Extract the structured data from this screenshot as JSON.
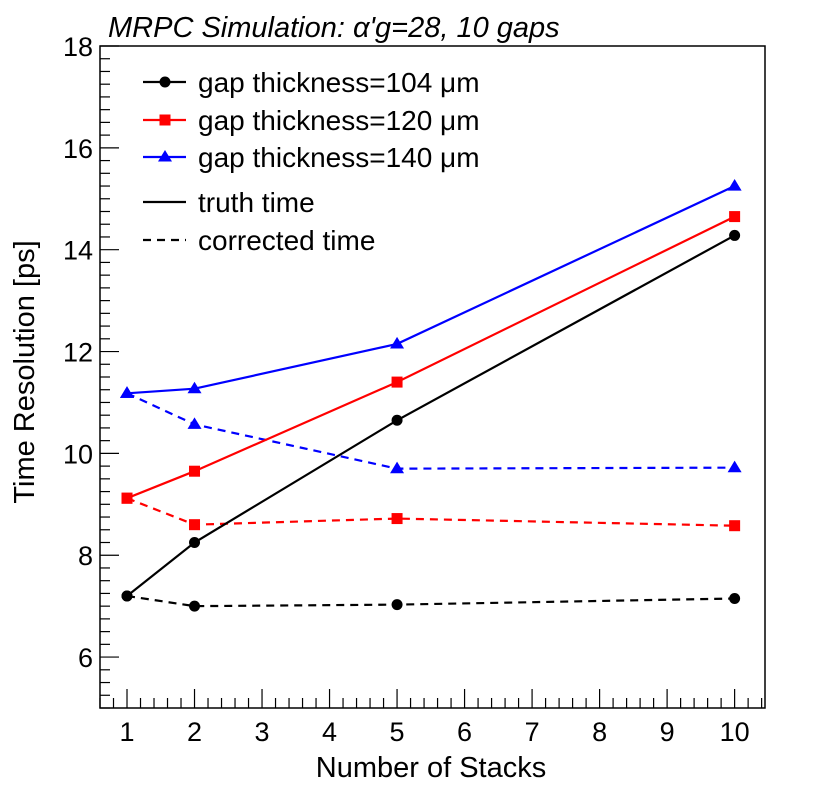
{
  "chart_data": {
    "type": "line",
    "title": "MRPC Simulation: α'g=28, 10 gaps",
    "xlabel": "Number of Stacks",
    "ylabel": "Time Resolution [ps]",
    "xlim": [
      0.6,
      10.45
    ],
    "ylim": [
      5,
      18
    ],
    "x_ticks": [
      1,
      2,
      3,
      4,
      5,
      6,
      7,
      8,
      9,
      10
    ],
    "x_tick_labels": [
      "1",
      "2",
      "3",
      "4",
      "5",
      "6",
      "7",
      "8",
      "9",
      "10"
    ],
    "y_ticks": [
      6,
      8,
      10,
      12,
      14,
      16,
      18
    ],
    "y_tick_labels": [
      "6",
      "8",
      "10",
      "12",
      "14",
      "16",
      "18"
    ],
    "legend_position": "top-left",
    "series": [
      {
        "name": "gap thickness=104 μm truth time",
        "legend": "gap thickness=104 μm",
        "color": "#000000",
        "marker": "circle",
        "style": "solid",
        "x": [
          1,
          2,
          5,
          10
        ],
        "values": [
          7.2,
          8.25,
          10.65,
          14.28
        ]
      },
      {
        "name": "gap thickness=120 μm truth time",
        "legend": "gap thickness=120 μm",
        "color": "#ff0000",
        "marker": "square",
        "style": "solid",
        "x": [
          1,
          2,
          5,
          10
        ],
        "values": [
          9.12,
          9.65,
          11.4,
          14.65
        ]
      },
      {
        "name": "gap thickness=140 μm truth time",
        "legend": "gap thickness=140 μm",
        "color": "#0000ff",
        "marker": "triangle",
        "style": "solid",
        "x": [
          1,
          2,
          5,
          10
        ],
        "values": [
          11.18,
          11.27,
          12.15,
          15.25
        ]
      },
      {
        "name": "gap thickness=104 μm corrected time",
        "color": "#000000",
        "marker": "circle",
        "style": "dashed",
        "x": [
          1,
          2,
          5,
          10
        ],
        "values": [
          7.2,
          7.0,
          7.03,
          7.15
        ]
      },
      {
        "name": "gap thickness=120 μm corrected time",
        "color": "#ff0000",
        "marker": "square",
        "style": "dashed",
        "x": [
          1,
          2,
          5,
          10
        ],
        "values": [
          9.12,
          8.6,
          8.72,
          8.58
        ]
      },
      {
        "name": "gap thickness=140 μm corrected time",
        "color": "#0000ff",
        "marker": "triangle",
        "style": "dashed",
        "x": [
          1,
          2,
          5,
          10
        ],
        "values": [
          11.18,
          10.57,
          9.7,
          9.72
        ]
      }
    ],
    "legend": [
      {
        "label": "gap thickness=104 μm",
        "color": "#000000",
        "marker": "circle",
        "style": "solid"
      },
      {
        "label": "gap thickness=120 μm",
        "color": "#ff0000",
        "marker": "square",
        "style": "solid"
      },
      {
        "label": "gap thickness=140 μm",
        "color": "#0000ff",
        "marker": "triangle",
        "style": "solid"
      },
      {
        "label": "truth time",
        "color": "#000000",
        "marker": "none",
        "style": "solid"
      },
      {
        "label": "corrected time",
        "color": "#000000",
        "marker": "none",
        "style": "dashed"
      }
    ]
  }
}
